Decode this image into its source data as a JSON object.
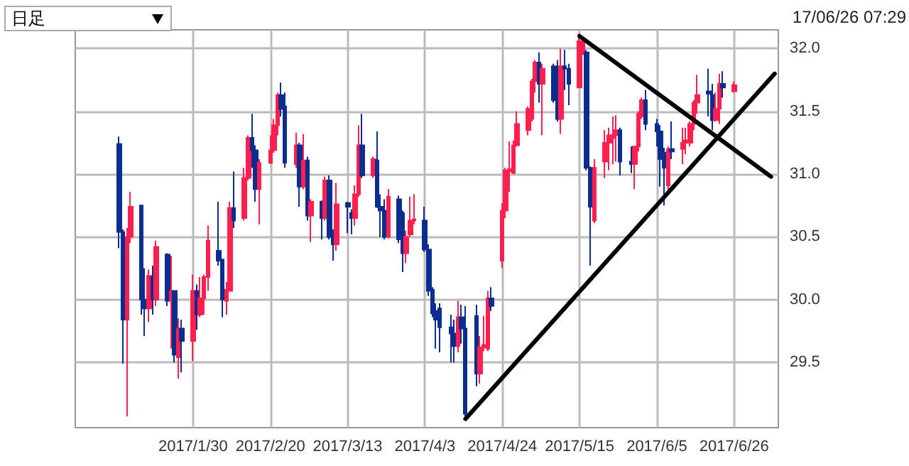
{
  "chart_data": {
    "type": "candlestick",
    "annotations": [
      "日足",
      "17/06/26 07:29"
    ],
    "xlim": [
      "2016-12-29",
      "2017-07-08"
    ],
    "xticks": [
      {
        "value": "2017-01-30",
        "label": "2017/1/30"
      },
      {
        "value": "2017-02-20",
        "label": "2017/2/20"
      },
      {
        "value": "2017-03-13",
        "label": "2017/3/13"
      },
      {
        "value": "2017-04-03",
        "label": "2017/4/3"
      },
      {
        "value": "2017-04-24",
        "label": "2017/4/24"
      },
      {
        "value": "2017-05-15",
        "label": "2017/5/15"
      },
      {
        "value": "2017-06-05",
        "label": "2017/6/5"
      },
      {
        "value": "2017-06-26",
        "label": "2017/6/26"
      }
    ],
    "ylim": [
      28.98,
      32.15
    ],
    "yticks": [
      {
        "value": 29.5,
        "label": "29.5"
      },
      {
        "value": 30,
        "label": "30.0"
      },
      {
        "value": 30.5,
        "label": "30.5"
      },
      {
        "value": 31,
        "label": "31.0"
      },
      {
        "value": 31.5,
        "label": "31.5"
      },
      {
        "value": 32,
        "label": "32.0"
      }
    ],
    "grid": true,
    "series": [
      {
        "type": "candlestick",
        "x": [
          "2017-01-10",
          "2017-01-11",
          "2017-01-12",
          "2017-01-13",
          "2017-01-16",
          "2017-01-17",
          "2017-01-18",
          "2017-01-19",
          "2017-01-20",
          "2017-01-23",
          "2017-01-24",
          "2017-01-25",
          "2017-01-26",
          "2017-01-27",
          "2017-01-30",
          "2017-01-31",
          "2017-02-01",
          "2017-02-02",
          "2017-02-03",
          "2017-02-06",
          "2017-02-07",
          "2017-02-08",
          "2017-02-09",
          "2017-02-10",
          "2017-02-13",
          "2017-02-14",
          "2017-02-15",
          "2017-02-16",
          "2017-02-17",
          "2017-02-20",
          "2017-02-21",
          "2017-02-22",
          "2017-02-23",
          "2017-02-24",
          "2017-02-27",
          "2017-02-28",
          "2017-03-01",
          "2017-03-02",
          "2017-03-03",
          "2017-03-06",
          "2017-03-07",
          "2017-03-08",
          "2017-03-09",
          "2017-03-10",
          "2017-03-13",
          "2017-03-14",
          "2017-03-15",
          "2017-03-16",
          "2017-03-17",
          "2017-03-20",
          "2017-03-21",
          "2017-03-22",
          "2017-03-23",
          "2017-03-24",
          "2017-03-27",
          "2017-03-28",
          "2017-03-29",
          "2017-03-30",
          "2017-03-31",
          "2017-04-03",
          "2017-04-04",
          "2017-04-05",
          "2017-04-06",
          "2017-04-07",
          "2017-04-10",
          "2017-04-11",
          "2017-04-12",
          "2017-04-13",
          "2017-04-14",
          "2017-04-17",
          "2017-04-18",
          "2017-04-19",
          "2017-04-20",
          "2017-04-21",
          "2017-04-24",
          "2017-04-25",
          "2017-04-26",
          "2017-04-27",
          "2017-04-28",
          "2017-05-01",
          "2017-05-02",
          "2017-05-03",
          "2017-05-04",
          "2017-05-05",
          "2017-05-08",
          "2017-05-09",
          "2017-05-10",
          "2017-05-11",
          "2017-05-12",
          "2017-05-15",
          "2017-05-16",
          "2017-05-17",
          "2017-05-18",
          "2017-05-19",
          "2017-05-22",
          "2017-05-23",
          "2017-05-24",
          "2017-05-25",
          "2017-05-26",
          "2017-05-29",
          "2017-05-30",
          "2017-05-31",
          "2017-06-01",
          "2017-06-02",
          "2017-06-05",
          "2017-06-06",
          "2017-06-07",
          "2017-06-08",
          "2017-06-09",
          "2017-06-12",
          "2017-06-13",
          "2017-06-14",
          "2017-06-15",
          "2017-06-16",
          "2017-06-19",
          "2017-06-20",
          "2017-06-21",
          "2017-06-22",
          "2017-06-23",
          "2017-06-26"
        ],
        "ohlc": [
          [
            31.24,
            31.3,
            30.41,
            30.54
          ],
          [
            30.54,
            30.56,
            29.49,
            29.84
          ],
          [
            29.84,
            30.57,
            29.07,
            30.5
          ],
          [
            30.5,
            30.86,
            30.45,
            30.74
          ],
          [
            30.75,
            30.75,
            29.88,
            30.0
          ],
          [
            30.0,
            30.25,
            29.71,
            29.93
          ],
          [
            29.93,
            30.24,
            29.82,
            30.19
          ],
          [
            30.18,
            30.27,
            29.88,
            30.0
          ],
          [
            30.0,
            30.47,
            29.95,
            30.42
          ],
          [
            30.36,
            30.37,
            29.95,
            29.99
          ],
          [
            29.99,
            30.35,
            29.61,
            30.07
          ],
          [
            30.07,
            30.07,
            29.5,
            29.56
          ],
          [
            29.54,
            29.85,
            29.37,
            29.77
          ],
          [
            29.77,
            29.84,
            29.42,
            29.67
          ],
          [
            29.67,
            30.2,
            29.51,
            30.07
          ],
          [
            30.07,
            30.12,
            29.76,
            29.88
          ],
          [
            29.88,
            30.18,
            29.86,
            30.01
          ],
          [
            30.01,
            30.2,
            29.88,
            30.18
          ],
          [
            30.18,
            30.59,
            30.07,
            30.47
          ],
          [
            30.39,
            30.78,
            30.27,
            30.31
          ],
          [
            30.32,
            30.32,
            29.86,
            30.0
          ],
          [
            29.99,
            30.14,
            29.88,
            30.08
          ],
          [
            30.07,
            30.78,
            30.07,
            30.73
          ],
          [
            30.73,
            31.02,
            30.57,
            30.63
          ],
          [
            30.65,
            31.05,
            30.63,
            30.97
          ],
          [
            30.97,
            31.31,
            30.95,
            31.29
          ],
          [
            31.29,
            31.48,
            31.05,
            31.19
          ],
          [
            31.19,
            31.23,
            30.78,
            30.88
          ],
          [
            30.88,
            31.12,
            30.6,
            31.09
          ],
          [
            31.09,
            31.31,
            31.08,
            31.19
          ],
          [
            31.19,
            31.44,
            31.17,
            31.39
          ],
          [
            31.39,
            31.65,
            31.31,
            31.63
          ],
          [
            31.63,
            31.73,
            31.46,
            31.52
          ],
          [
            31.54,
            31.65,
            31.05,
            31.09
          ],
          [
            31.08,
            31.33,
            31.05,
            31.23
          ],
          [
            31.23,
            31.25,
            30.74,
            30.9
          ],
          [
            30.9,
            31.32,
            30.88,
            31.11
          ],
          [
            31.11,
            31.14,
            30.63,
            30.67
          ],
          [
            30.67,
            30.8,
            30.46,
            30.78
          ],
          [
            30.78,
            30.79,
            30.48,
            30.65
          ],
          [
            30.65,
            30.98,
            30.63,
            30.95
          ],
          [
            30.95,
            30.99,
            30.48,
            30.5
          ],
          [
            30.5,
            30.56,
            30.31,
            30.44
          ],
          [
            30.44,
            30.93,
            30.39,
            30.76
          ],
          [
            30.77,
            30.78,
            30.53,
            30.74
          ],
          [
            30.69,
            30.72,
            30.52,
            30.65
          ],
          [
            30.65,
            30.91,
            30.59,
            30.84
          ],
          [
            30.84,
            31.39,
            30.82,
            31.23
          ],
          [
            31.23,
            31.48,
            30.97,
            30.99
          ],
          [
            30.99,
            31.14,
            30.97,
            31.12
          ],
          [
            31.11,
            31.34,
            30.73,
            30.74
          ],
          [
            30.74,
            30.84,
            30.5,
            30.71
          ],
          [
            30.71,
            30.8,
            30.48,
            30.5
          ],
          [
            30.5,
            30.88,
            30.49,
            30.82
          ],
          [
            30.8,
            30.83,
            30.45,
            30.48
          ],
          [
            30.69,
            30.71,
            30.22,
            30.37
          ],
          [
            30.37,
            30.55,
            30.29,
            30.5
          ],
          [
            30.52,
            30.82,
            30.5,
            30.63
          ],
          [
            30.63,
            30.84,
            30.6,
            30.64
          ],
          [
            30.63,
            30.74,
            30.38,
            30.4
          ],
          [
            30.4,
            30.44,
            30.03,
            30.07
          ],
          [
            30.08,
            30.1,
            29.86,
            29.89
          ],
          [
            29.91,
            29.97,
            29.61,
            29.84
          ],
          [
            29.93,
            29.97,
            29.58,
            29.78
          ],
          [
            29.78,
            29.88,
            29.5,
            29.73
          ],
          [
            29.73,
            29.84,
            29.5,
            29.63
          ],
          [
            29.63,
            29.99,
            29.58,
            29.86
          ],
          [
            29.86,
            29.96,
            29.65,
            29.77
          ],
          [
            29.77,
            29.95,
            29.07,
            29.09
          ],
          [
            29.87,
            29.96,
            29.31,
            29.41
          ],
          [
            29.41,
            29.71,
            29.33,
            29.62
          ],
          [
            29.62,
            29.87,
            29.59,
            29.64
          ],
          [
            29.61,
            30.07,
            29.59,
            30.01
          ],
          [
            30.01,
            30.1,
            29.91,
            29.95
          ],
          [
            30.31,
            30.77,
            30.25,
            30.71
          ],
          [
            30.71,
            31.05,
            30.65,
            31.03
          ],
          [
            31.02,
            31.26,
            30.86,
            31.04
          ],
          [
            31.01,
            31.27,
            31.0,
            31.23
          ],
          [
            31.23,
            31.5,
            31.22,
            31.4
          ],
          [
            31.35,
            31.54,
            31.31,
            31.52
          ],
          [
            31.44,
            31.76,
            31.42,
            31.74
          ],
          [
            31.74,
            31.91,
            31.65,
            31.89
          ],
          [
            31.89,
            31.97,
            31.57,
            31.72
          ],
          [
            31.72,
            31.88,
            31.31,
            31.84
          ],
          [
            31.86,
            31.88,
            31.57,
            31.59
          ],
          [
            31.59,
            31.91,
            31.42,
            31.44
          ],
          [
            31.44,
            32.0,
            31.32,
            31.86
          ],
          [
            31.86,
            31.99,
            31.67,
            31.84
          ],
          [
            31.84,
            31.88,
            31.55,
            31.72
          ],
          [
            31.69,
            32.12,
            31.69,
            32.06
          ],
          [
            31.97,
            32.06,
            31.95,
            32.05
          ],
          [
            31.97,
            31.99,
            31.03,
            31.05
          ],
          [
            31.05,
            31.06,
            30.27,
            30.74
          ],
          [
            30.63,
            31.12,
            30.61,
            31.05
          ],
          [
            31.1,
            31.35,
            30.97,
            31.25
          ],
          [
            31.25,
            31.37,
            31.03,
            31.31
          ],
          [
            31.29,
            31.46,
            31.08,
            31.31
          ],
          [
            31.31,
            31.47,
            31.1,
            31.35
          ],
          [
            31.35,
            31.37,
            30.99,
            31.1
          ],
          [
            31.1,
            31.22,
            31.01,
            31.08
          ],
          [
            31.08,
            31.22,
            30.88,
            31.22
          ],
          [
            31.22,
            31.5,
            31.18,
            31.48
          ],
          [
            31.46,
            31.61,
            31.44,
            31.59
          ],
          [
            31.59,
            31.67,
            31.35,
            31.4
          ],
          [
            31.4,
            31.44,
            31.22,
            31.34
          ],
          [
            31.34,
            31.39,
            30.9,
            31.12
          ],
          [
            31.17,
            31.21,
            30.75,
            31.05
          ],
          [
            30.91,
            31.22,
            30.86,
            31.2
          ],
          [
            31.2,
            31.42,
            31.12,
            31.18
          ],
          [
            31.2,
            31.37,
            31.08,
            31.25
          ],
          [
            31.25,
            31.37,
            31.16,
            31.27
          ],
          [
            31.25,
            31.42,
            31.22,
            31.4
          ],
          [
            31.4,
            31.59,
            31.35,
            31.57
          ],
          [
            31.57,
            31.79,
            31.48,
            31.63
          ],
          [
            31.66,
            31.84,
            31.46,
            31.64
          ],
          [
            31.63,
            31.72,
            31.35,
            31.43
          ],
          [
            31.43,
            31.65,
            31.42,
            31.52
          ],
          [
            31.52,
            31.8,
            31.4,
            31.72
          ],
          [
            31.72,
            31.82,
            31.61,
            31.69
          ],
          [
            31.66,
            31.74,
            31.65,
            31.71
          ]
        ],
        "colors": [
          "#0a2d8f",
          "#0a2d8f",
          "#ff1f4f",
          "#ff1f4f",
          "#0a2d8f",
          "#0a2d8f",
          "#ff1f4f",
          "#0a2d8f",
          "#ff1f4f",
          "#0a2d8f",
          "#ff1f4f",
          "#0a2d8f",
          "#ff1f4f",
          "#0a2d8f",
          "#ff1f4f",
          "#0a2d8f",
          "#ff1f4f",
          "#ff1f4f",
          "#ff1f4f",
          "#0a2d8f",
          "#0a2d8f",
          "#ff1f4f",
          "#ff1f4f",
          "#0a2d8f",
          "#ff1f4f",
          "#ff1f4f",
          "#0a2d8f",
          "#0a2d8f",
          "#ff1f4f",
          "#ff1f4f",
          "#ff1f4f",
          "#ff1f4f",
          "#0a2d8f",
          "#0a2d8f",
          "#ff1f4f",
          "#0a2d8f",
          "#ff1f4f",
          "#0a2d8f",
          "#ff1f4f",
          "#0a2d8f",
          "#ff1f4f",
          "#0a2d8f",
          "#0a2d8f",
          "#ff1f4f",
          "#0a2d8f",
          "#0a2d8f",
          "#ff1f4f",
          "#ff1f4f",
          "#0a2d8f",
          "#ff1f4f",
          "#0a2d8f",
          "#0a2d8f",
          "#0a2d8f",
          "#ff1f4f",
          "#0a2d8f",
          "#0a2d8f",
          "#ff1f4f",
          "#ff1f4f",
          "#ff1f4f",
          "#0a2d8f",
          "#0a2d8f",
          "#0a2d8f",
          "#0a2d8f",
          "#0a2d8f",
          "#0a2d8f",
          "#0a2d8f",
          "#ff1f4f",
          "#0a2d8f",
          "#0a2d8f",
          "#0a2d8f",
          "#ff1f4f",
          "#ff1f4f",
          "#ff1f4f",
          "#0a2d8f",
          "#ff1f4f",
          "#ff1f4f",
          "#ff1f4f",
          "#ff1f4f",
          "#ff1f4f",
          "#ff1f4f",
          "#ff1f4f",
          "#ff1f4f",
          "#0a2d8f",
          "#ff1f4f",
          "#0a2d8f",
          "#0a2d8f",
          "#ff1f4f",
          "#0a2d8f",
          "#0a2d8f",
          "#ff1f4f",
          "#ff1f4f",
          "#0a2d8f",
          "#0a2d8f",
          "#ff1f4f",
          "#ff1f4f",
          "#ff1f4f",
          "#ff1f4f",
          "#ff1f4f",
          "#0a2d8f",
          "#0a2d8f",
          "#ff1f4f",
          "#ff1f4f",
          "#ff1f4f",
          "#0a2d8f",
          "#0a2d8f",
          "#0a2d8f",
          "#0a2d8f",
          "#ff1f4f",
          "#0a2d8f",
          "#ff1f4f",
          "#ff1f4f",
          "#ff1f4f",
          "#ff1f4f",
          "#ff1f4f",
          "#0a2d8f",
          "#0a2d8f",
          "#ff1f4f",
          "#ff1f4f",
          "#0a2d8f",
          "#ff1f4f"
        ]
      },
      {
        "type": "line",
        "x": [
          "2017-04-14",
          "2017-07-07"
        ],
        "values": [
          29.05,
          31.8
        ],
        "color": "#000000"
      },
      {
        "type": "line",
        "x": [
          "2017-05-15",
          "2017-07-06"
        ],
        "values": [
          32.1,
          30.98
        ],
        "color": "#000000"
      }
    ]
  }
}
